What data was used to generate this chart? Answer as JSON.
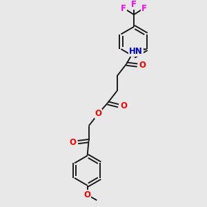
{
  "background_color": "#e8e8e8",
  "bond_color": "#1a1a1a",
  "atom_colors": {
    "O": "#ff0000",
    "N": "#0000cc",
    "F": "#ff00ff",
    "H": "#4a9090",
    "C": "#1a1a1a"
  },
  "figsize": [
    3.0,
    3.0
  ],
  "dpi": 100,
  "lw": 1.4,
  "fs": 8.5
}
